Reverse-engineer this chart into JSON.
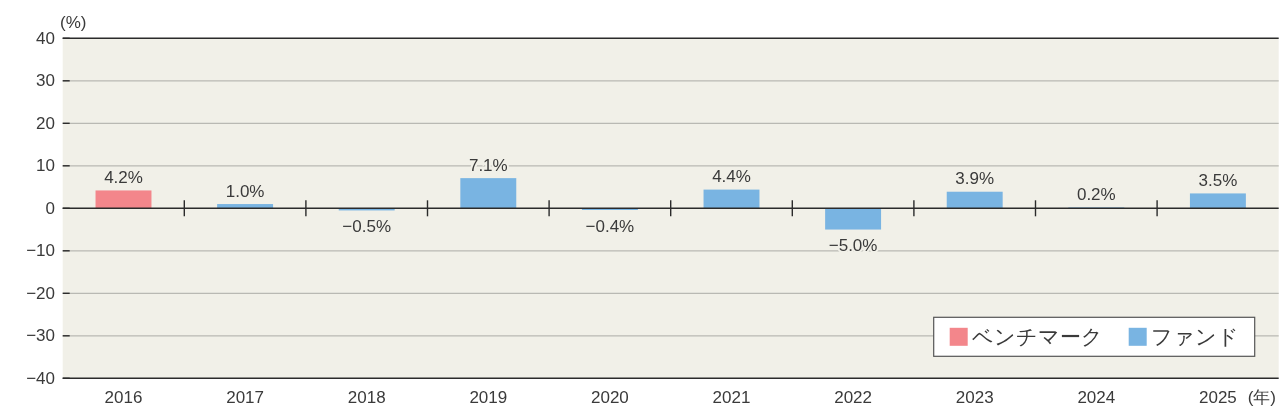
{
  "chart_data": {
    "type": "bar",
    "ylabel": "(%)",
    "xlabel": "(年)",
    "categories": [
      "2016",
      "2017",
      "2018",
      "2019",
      "2020",
      "2021",
      "2022",
      "2023",
      "2024",
      "2025"
    ],
    "series": [
      {
        "name": "ベンチマーク",
        "color": "#f3868b",
        "values": [
          4.2,
          null,
          null,
          null,
          null,
          null,
          null,
          null,
          null,
          null
        ],
        "value_labels": [
          "4.2%",
          null,
          null,
          null,
          null,
          null,
          null,
          null,
          null,
          null
        ]
      },
      {
        "name": "ファンド",
        "color": "#79b4e2",
        "values": [
          null,
          1.0,
          -0.5,
          7.1,
          -0.4,
          4.4,
          -5.0,
          3.9,
          0.2,
          3.5
        ],
        "value_labels": [
          null,
          "1.0%",
          "−0.5%",
          "7.1%",
          "−0.4%",
          "4.4%",
          "−5.0%",
          "3.9%",
          "0.2%",
          "3.5%"
        ]
      }
    ],
    "ylim": [
      -40,
      40
    ],
    "yticks": [
      40,
      30,
      20,
      10,
      0,
      {
        "value": -10,
        "label": "−10"
      },
      {
        "value": -20,
        "label": "−20"
      },
      {
        "value": -30,
        "label": "−30"
      },
      {
        "value": -40,
        "label": "−40"
      }
    ],
    "grid": "y",
    "legend": "bottom right"
  }
}
